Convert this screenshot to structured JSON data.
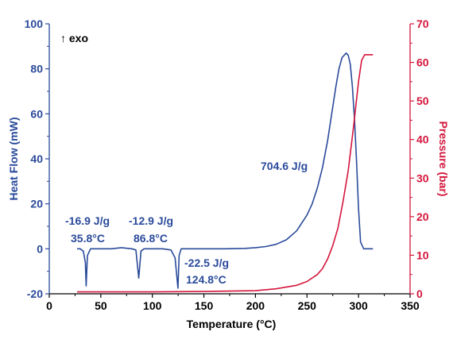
{
  "chart_data": {
    "type": "line",
    "xlabel": "Temperature (°C)",
    "ylabel": "Heat Flow (mW)",
    "y2label": "Pressure (bar)",
    "xlim": [
      0,
      350
    ],
    "ylim": [
      -20,
      100
    ],
    "y2lim": [
      0,
      70
    ],
    "x_ticks": [
      "0",
      "50",
      "100",
      "150",
      "200",
      "250",
      "300",
      "350"
    ],
    "y_ticks": [
      "-20",
      "0",
      "20",
      "40",
      "60",
      "80",
      "100"
    ],
    "y2_ticks": [
      "0",
      "10",
      "20",
      "30",
      "40",
      "50",
      "60",
      "70"
    ],
    "grid": false,
    "colors": {
      "heat_flow": "#2a4a9a",
      "pressure": "#d4163c",
      "axis": "#000000"
    },
    "series": [
      {
        "axis": "left",
        "color": "#2a4a9a",
        "x": [
          27,
          30,
          33,
          35,
          35.8,
          37,
          40,
          50,
          60,
          70,
          80,
          84,
          86.8,
          89,
          92,
          100,
          110,
          118,
          122,
          124.8,
          126,
          128,
          135,
          150,
          170,
          190,
          200,
          210,
          220,
          230,
          240,
          250,
          255,
          260,
          265,
          270,
          275,
          278,
          281,
          284,
          286,
          288,
          290,
          292,
          294,
          296,
          298,
          300,
          302,
          305,
          310,
          314
        ],
        "y": [
          0,
          0,
          -1,
          -6,
          -16.5,
          -3,
          0,
          0,
          0,
          0.5,
          0,
          -0.5,
          -13,
          -1,
          0,
          0,
          0,
          -0.5,
          -4,
          -17.5,
          -3,
          0,
          0,
          0,
          0,
          0.2,
          0.5,
          1,
          2,
          4,
          8,
          15,
          20,
          27,
          36,
          48,
          63,
          72,
          80,
          85,
          86,
          87,
          86,
          82,
          72,
          58,
          40,
          18,
          3,
          0,
          0,
          0
        ]
      },
      {
        "axis": "right",
        "color": "#d4163c",
        "x": [
          27,
          100,
          150,
          200,
          220,
          240,
          250,
          260,
          265,
          270,
          275,
          280,
          285,
          290,
          295,
          300,
          303,
          306,
          310,
          314
        ],
        "y": [
          0.5,
          0.5,
          0.6,
          0.8,
          1.3,
          2.2,
          3.2,
          5,
          6.5,
          9,
          12.5,
          17,
          24,
          32,
          43,
          55,
          60.5,
          62,
          62,
          62
        ]
      }
    ],
    "annotations": {
      "exo": "↑ exo",
      "peak1_energy": "-16.9 J/g",
      "peak1_temp": "35.8°C",
      "peak2_energy": "-12.9 J/g",
      "peak2_temp": "86.8°C",
      "peak3_energy": "-22.5 J/g",
      "peak3_temp": "124.8°C",
      "exotherm": "704.6 J/g"
    }
  }
}
